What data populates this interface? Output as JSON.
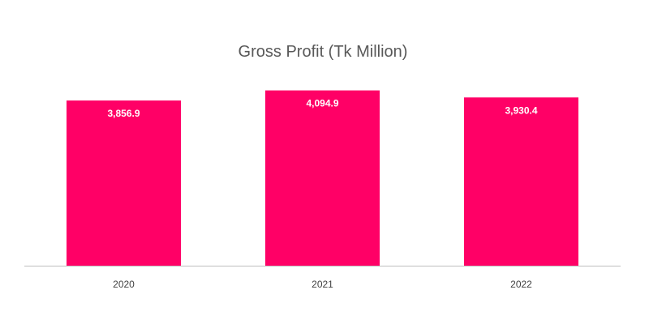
{
  "chart_data": {
    "type": "bar",
    "title": "Gross Profit (Tk Million)",
    "categories": [
      "2020",
      "2021",
      "2022"
    ],
    "values": [
      3856.9,
      4094.9,
      3930.4
    ],
    "data_labels": [
      "3,856.9",
      "4,094.9",
      "3,930.4"
    ],
    "xlabel": "",
    "ylabel": "",
    "ylim": [
      0,
      4200
    ],
    "grid": false,
    "legend": "none",
    "bar_color": "#ff0066",
    "axis_color": "#bfbfbf"
  }
}
